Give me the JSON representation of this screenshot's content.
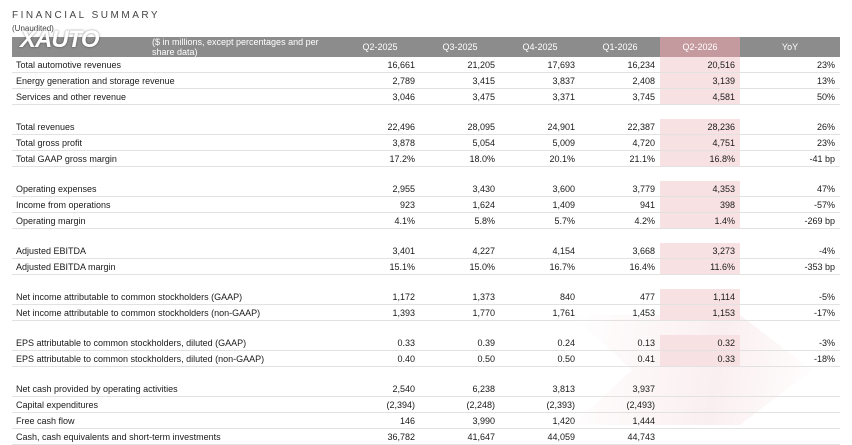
{
  "header": {
    "title": "FINANCIAL SUMMARY",
    "subtitle": "(Unaudited)",
    "watermark": "XAUTO"
  },
  "table": {
    "columns": [
      "($ in millions, except percentages and per share data)",
      "Q2-2025",
      "Q3-2025",
      "Q4-2025",
      "Q1-2026",
      "Q2-2026",
      "YoY"
    ],
    "highlight_column_index": 5,
    "groups": [
      [
        {
          "label": "Total automotive revenues",
          "values": [
            "16,661",
            "21,205",
            "17,693",
            "16,234",
            "20,516",
            "23%"
          ]
        },
        {
          "label": "Energy generation and storage revenue",
          "values": [
            "2,789",
            "3,415",
            "3,837",
            "2,408",
            "3,139",
            "13%"
          ]
        },
        {
          "label": "Services and other revenue",
          "values": [
            "3,046",
            "3,475",
            "3,371",
            "3,745",
            "4,581",
            "50%"
          ]
        }
      ],
      [
        {
          "label": "Total revenues",
          "values": [
            "22,496",
            "28,095",
            "24,901",
            "22,387",
            "28,236",
            "26%"
          ]
        },
        {
          "label": "Total gross profit",
          "values": [
            "3,878",
            "5,054",
            "5,009",
            "4,720",
            "4,751",
            "23%"
          ]
        },
        {
          "label": "Total GAAP gross margin",
          "values": [
            "17.2%",
            "18.0%",
            "20.1%",
            "21.1%",
            "16.8%",
            "-41 bp"
          ]
        }
      ],
      [
        {
          "label": "Operating expenses",
          "values": [
            "2,955",
            "3,430",
            "3,600",
            "3,779",
            "4,353",
            "47%"
          ]
        },
        {
          "label": "Income from operations",
          "values": [
            "923",
            "1,624",
            "1,409",
            "941",
            "398",
            "-57%"
          ]
        },
        {
          "label": "Operating margin",
          "values": [
            "4.1%",
            "5.8%",
            "5.7%",
            "4.2%",
            "1.4%",
            "-269 bp"
          ]
        }
      ],
      [
        {
          "label": "Adjusted EBITDA",
          "values": [
            "3,401",
            "4,227",
            "4,154",
            "3,668",
            "3,273",
            "-4%"
          ]
        },
        {
          "label": "Adjusted EBITDA margin",
          "values": [
            "15.1%",
            "15.0%",
            "16.7%",
            "16.4%",
            "11.6%",
            "-353 bp"
          ]
        }
      ],
      [
        {
          "label": "Net income attributable to common stockholders (GAAP)",
          "values": [
            "1,172",
            "1,373",
            "840",
            "477",
            "1,114",
            "-5%"
          ]
        },
        {
          "label": "Net income attributable to common stockholders (non-GAAP)",
          "values": [
            "1,393",
            "1,770",
            "1,761",
            "1,453",
            "1,153",
            "-17%"
          ]
        }
      ],
      [
        {
          "label": "EPS attributable to common stockholders, diluted (GAAP)",
          "values": [
            "0.33",
            "0.39",
            "0.24",
            "0.13",
            "0.32",
            "-3%"
          ]
        },
        {
          "label": "EPS attributable to common stockholders, diluted (non-GAAP)",
          "values": [
            "0.40",
            "0.50",
            "0.50",
            "0.41",
            "0.33",
            "-18%"
          ]
        }
      ],
      [
        {
          "label": "Net cash provided by operating activities",
          "values": [
            "2,540",
            "6,238",
            "3,813",
            "3,937",
            "",
            ""
          ]
        },
        {
          "label": "Capital expenditures",
          "values": [
            "(2,394)",
            "(2,248)",
            "(2,393)",
            "(2,493)",
            "",
            ""
          ]
        },
        {
          "label": "Free cash flow",
          "values": [
            "146",
            "3,990",
            "1,420",
            "1,444",
            "",
            ""
          ]
        },
        {
          "label": "Cash, cash equivalents and short-term investments",
          "values": [
            "36,782",
            "41,647",
            "44,059",
            "44,743",
            "",
            ""
          ]
        }
      ]
    ]
  }
}
